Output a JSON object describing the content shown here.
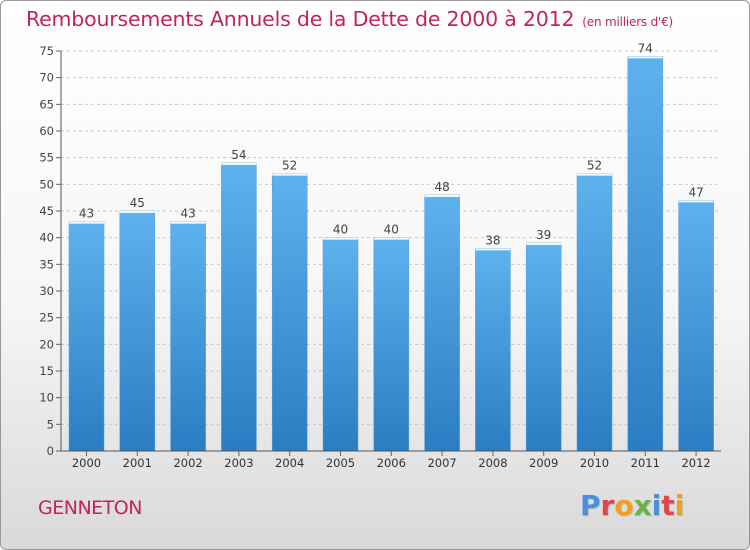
{
  "title": "Remboursements Annuels de la Dette de 2000 à 2012",
  "subtitle": "(en milliers d'€)",
  "place": "GENNETON",
  "logo": {
    "letters": [
      "P",
      "r",
      "o",
      "x",
      "i",
      "t",
      "i"
    ],
    "colors": [
      "#4a90d9",
      "#e04646",
      "#f0a020",
      "#6ab04c",
      "#4a90d9",
      "#e04646",
      "#f0a020"
    ]
  },
  "colors": {
    "bar_light": "#5aaeea",
    "bar_dark": "#2a7fc4",
    "title": "#c0245a"
  },
  "chart_data": {
    "type": "bar",
    "title": "Remboursements Annuels de la Dette de 2000 à 2012",
    "subtitle": "(en milliers d'€)",
    "xlabel": "",
    "ylabel": "",
    "categories": [
      "2000",
      "2001",
      "2002",
      "2003",
      "2004",
      "2005",
      "2006",
      "2007",
      "2008",
      "2009",
      "2010",
      "2011",
      "2012"
    ],
    "values": [
      43,
      45,
      43,
      54,
      52,
      40,
      40,
      48,
      38,
      39,
      52,
      74,
      47
    ],
    "ylim": [
      0,
      75
    ],
    "yticks": [
      0,
      5,
      10,
      15,
      20,
      25,
      30,
      35,
      40,
      45,
      50,
      55,
      60,
      65,
      70,
      75
    ],
    "grid": "horizontal-dashed",
    "legend": "none"
  }
}
